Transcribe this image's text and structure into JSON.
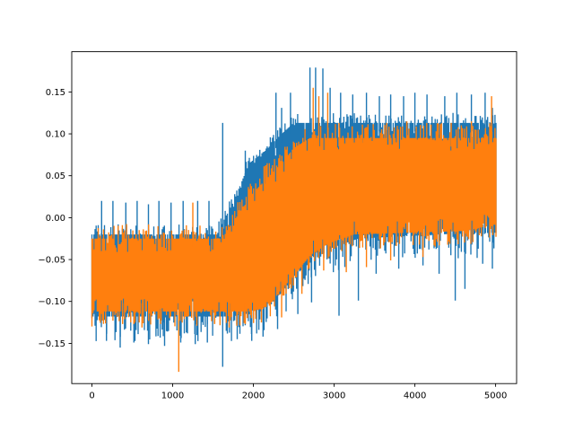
{
  "chart_data": {
    "type": "line",
    "title": "",
    "xlabel": "",
    "ylabel": "",
    "grid": false,
    "legend": "none",
    "background": "#ffffff",
    "frame_color": "#000000",
    "xlim": [
      -250,
      5260
    ],
    "ylim": [
      -0.198,
      0.198
    ],
    "xticks": [
      0,
      1000,
      2000,
      3000,
      4000,
      5000
    ],
    "xtick_labels": [
      "0",
      "1000",
      "2000",
      "3000",
      "4000",
      "5000"
    ],
    "yticks": [
      -0.15,
      -0.1,
      -0.05,
      0.0,
      0.05,
      0.1,
      0.15
    ],
    "ytick_labels": [
      "−0.15",
      "−0.10",
      "−0.05",
      "0.00",
      "0.05",
      "0.10",
      "0.15"
    ],
    "x_points": 5000,
    "series": [
      {
        "name": "series-0-blue",
        "color": "#1f77b4",
        "band": [
          [
            0,
            -0.118,
            -0.02
          ],
          [
            1550,
            -0.118,
            -0.02
          ],
          [
            1650,
            -0.118,
            0.0
          ],
          [
            1750,
            -0.118,
            0.018
          ],
          [
            1950,
            -0.112,
            0.065
          ],
          [
            2150,
            -0.105,
            0.08
          ],
          [
            2350,
            -0.09,
            0.1
          ],
          [
            2500,
            -0.07,
            0.113
          ],
          [
            2750,
            -0.05,
            0.113
          ],
          [
            3000,
            -0.035,
            0.113
          ],
          [
            3300,
            -0.025,
            0.113
          ],
          [
            4300,
            -0.02,
            0.113
          ],
          [
            5010,
            -0.018,
            0.113
          ]
        ],
        "teeth": {
          "down_amp": 0.03,
          "down_prob": 0.5,
          "up_amp": 0.012,
          "up_prob": 0.35,
          "notch_prob": 0.3,
          "notch_amp": 0.02
        },
        "spikes_up": [
          [
            120,
            0.02
          ],
          [
            260,
            0.02
          ],
          [
            420,
            0.018
          ],
          [
            560,
            0.02
          ],
          [
            700,
            0.016
          ],
          [
            830,
            0.02
          ],
          [
            980,
            0.018
          ],
          [
            1130,
            0.02
          ],
          [
            1310,
            0.02
          ],
          [
            1450,
            0.02
          ],
          [
            1620,
            0.113
          ],
          [
            1900,
            0.08
          ],
          [
            2050,
            0.065
          ],
          [
            2280,
            0.149
          ],
          [
            2350,
            0.131
          ],
          [
            2460,
            0.149
          ],
          [
            2700,
            0.179
          ],
          [
            2770,
            0.179
          ],
          [
            2860,
            0.178
          ],
          [
            2950,
            0.155
          ],
          [
            3080,
            0.149
          ],
          [
            3230,
            0.147
          ],
          [
            3400,
            0.149
          ],
          [
            3560,
            0.145
          ],
          [
            3700,
            0.147
          ],
          [
            3860,
            0.145
          ],
          [
            4000,
            0.149
          ],
          [
            4150,
            0.147
          ],
          [
            4370,
            0.145
          ],
          [
            4520,
            0.149
          ],
          [
            4700,
            0.147
          ],
          [
            4870,
            0.149
          ],
          [
            4960,
            0.131
          ]
        ],
        "spikes_down": [
          [
            180,
            -0.147
          ],
          [
            350,
            -0.155
          ],
          [
            520,
            -0.149
          ],
          [
            700,
            -0.151
          ],
          [
            900,
            -0.153
          ],
          [
            1100,
            -0.149
          ],
          [
            1280,
            -0.151
          ],
          [
            1430,
            -0.149
          ],
          [
            1620,
            -0.178
          ],
          [
            1800,
            -0.145
          ],
          [
            1980,
            -0.147
          ],
          [
            2120,
            -0.142
          ],
          [
            2300,
            -0.133
          ],
          [
            2550,
            -0.115
          ],
          [
            2720,
            -0.101
          ],
          [
            3060,
            -0.117
          ],
          [
            3300,
            -0.099
          ],
          [
            3520,
            -0.067
          ],
          [
            3800,
            -0.061
          ],
          [
            4100,
            -0.057
          ],
          [
            4300,
            -0.067
          ],
          [
            4500,
            -0.099
          ],
          [
            4620,
            -0.085
          ],
          [
            4840,
            -0.055
          ],
          [
            4960,
            -0.061
          ]
        ]
      },
      {
        "name": "series-1-orange",
        "color": "#ff7f0e",
        "band": [
          [
            0,
            -0.112,
            -0.025
          ],
          [
            1600,
            -0.112,
            -0.025
          ],
          [
            1750,
            -0.112,
            -0.005
          ],
          [
            2000,
            -0.112,
            0.03
          ],
          [
            2200,
            -0.105,
            0.05
          ],
          [
            2350,
            -0.085,
            0.065
          ],
          [
            2500,
            -0.07,
            0.083
          ],
          [
            2700,
            -0.045,
            0.095
          ],
          [
            2950,
            -0.03,
            0.095
          ],
          [
            3250,
            -0.02,
            0.095
          ],
          [
            4600,
            -0.016,
            0.095
          ],
          [
            5010,
            -0.008,
            0.095
          ]
        ],
        "teeth": {
          "down_amp": 0.018,
          "down_prob": 0.45,
          "up_amp": 0.018,
          "up_prob": 0.45,
          "notch_prob": 0.3,
          "notch_amp": 0.016
        },
        "spikes_up": [
          [
            1250,
            0.018
          ],
          [
            2150,
            0.062
          ],
          [
            2740,
            0.155
          ],
          [
            2810,
            0.145
          ],
          [
            2920,
            0.149
          ],
          [
            3060,
            0.113
          ],
          [
            3350,
            0.111
          ],
          [
            3650,
            0.113
          ],
          [
            3900,
            0.115
          ],
          [
            4200,
            0.111
          ],
          [
            4450,
            0.113
          ],
          [
            4700,
            0.115
          ],
          [
            4950,
            0.145
          ]
        ],
        "spikes_down": [
          [
            380,
            -0.127
          ],
          [
            620,
            -0.131
          ],
          [
            850,
            -0.127
          ],
          [
            1075,
            -0.184
          ],
          [
            1300,
            -0.129
          ],
          [
            1520,
            -0.127
          ],
          [
            1700,
            -0.131
          ],
          [
            1900,
            -0.127
          ],
          [
            2100,
            -0.125
          ],
          [
            2350,
            -0.119
          ],
          [
            2600,
            -0.091
          ],
          [
            2870,
            -0.063
          ],
          [
            3150,
            -0.065
          ],
          [
            3400,
            -0.059
          ],
          [
            3700,
            -0.051
          ],
          [
            4100,
            -0.047
          ]
        ]
      }
    ],
    "render": {
      "seed": 7,
      "step": 13,
      "col_width": 1.35,
      "spike_width": 1.4
    }
  }
}
